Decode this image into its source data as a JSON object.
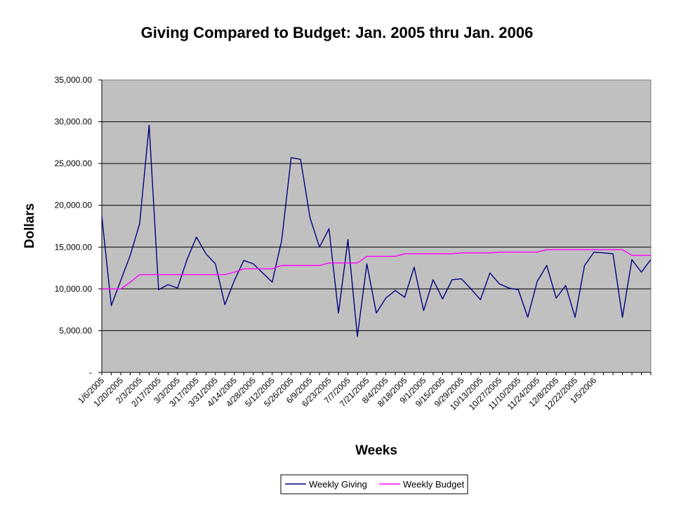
{
  "chart_data": {
    "type": "line",
    "title": "Giving Compared to Budget:  Jan. 2005 thru Jan. 2006",
    "xlabel": "Weeks",
    "ylabel": "Dollars",
    "ylim": [
      0,
      35000
    ],
    "yticks": [
      {
        "value": 0,
        "label": "-"
      },
      {
        "value": 5000,
        "label": "5,000.00"
      },
      {
        "value": 10000,
        "label": "10,000.00"
      },
      {
        "value": 15000,
        "label": "15,000.00"
      },
      {
        "value": 20000,
        "label": "20,000.00"
      },
      {
        "value": 25000,
        "label": "25,000.00"
      },
      {
        "value": 30000,
        "label": "30,000.00"
      },
      {
        "value": 35000,
        "label": "35,000.00"
      }
    ],
    "x_tick_labels": [
      "1/6/2005",
      "1/20/2005",
      "2/3/2005",
      "2/17/2005",
      "3/3/2005",
      "3/17/2005",
      "3/31/2005",
      "4/14/2005",
      "4/28/2005",
      "5/12/2005",
      "5/26/2005",
      "6/9/2005",
      "6/23/2005",
      "7/7/2005",
      "7/21/2005",
      "8/4/2005",
      "8/18/2005",
      "9/1/2005",
      "9/15/2005",
      "9/29/2005",
      "10/13/2005",
      "10/27/2005",
      "11/10/2005",
      "11/24/2005",
      "12/8/2005",
      "12/22/2005",
      "1/5/2006"
    ],
    "grid": true,
    "background": "#c0c0c0",
    "legend_position": "bottom",
    "series": [
      {
        "name": "Weekly Giving",
        "color": "#000080",
        "values": [
          18700,
          8000,
          11000,
          14000,
          17800,
          29600,
          9900,
          10500,
          10100,
          13500,
          16200,
          14200,
          13000,
          8100,
          11000,
          13400,
          13000,
          11900,
          10800,
          15800,
          25700,
          25500,
          18500,
          15000,
          17200,
          7100,
          15900,
          4300,
          13000,
          7100,
          8900,
          9800,
          9000,
          12600,
          7400,
          11100,
          8800,
          11100,
          11200,
          10000,
          8700,
          11900,
          10600,
          10100,
          9900,
          6600,
          10900,
          12800,
          8900,
          10400,
          6600,
          12800,
          14400,
          14300,
          14200,
          6600,
          13500,
          12000,
          13500
        ]
      },
      {
        "name": "Weekly Budget",
        "color": "#ff00ff",
        "values": [
          10000,
          10000,
          10000,
          10800,
          11700,
          11700,
          11700,
          11700,
          11700,
          11700,
          11700,
          11700,
          11700,
          11700,
          12000,
          12400,
          12400,
          12400,
          12400,
          12800,
          12800,
          12800,
          12800,
          12800,
          13100,
          13100,
          13100,
          13100,
          13900,
          13900,
          13900,
          13900,
          14200,
          14200,
          14200,
          14200,
          14200,
          14200,
          14300,
          14300,
          14300,
          14300,
          14400,
          14400,
          14400,
          14400,
          14400,
          14700,
          14700,
          14700,
          14700,
          14700,
          14700,
          14700,
          14700,
          14700,
          14000,
          14000,
          14000
        ]
      }
    ]
  }
}
